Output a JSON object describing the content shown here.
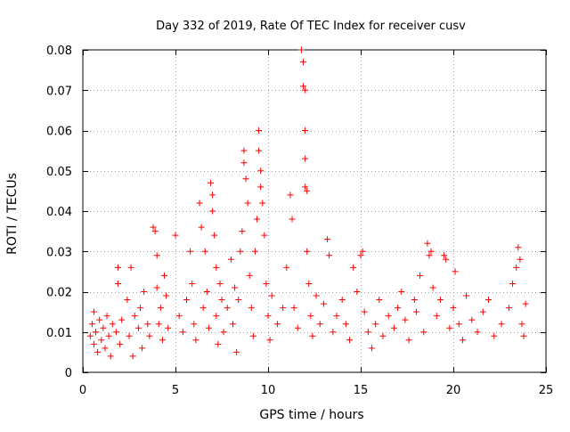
{
  "chart_data": {
    "type": "scatter",
    "title": "Day 332 of 2019, Rate Of TEC Index for receiver cusv",
    "xlabel": "GPS time / hours",
    "ylabel": "ROTI / TECUs",
    "xlim": [
      0,
      25
    ],
    "ylim": [
      0,
      0.08
    ],
    "xticks": [
      0,
      5,
      10,
      15,
      20,
      25
    ],
    "yticks": [
      0,
      0.01,
      0.02,
      0.03,
      0.04,
      0.05,
      0.06,
      0.07,
      0.08
    ],
    "xtick_labels": [
      "0",
      "5",
      "10",
      "15",
      "20",
      "25"
    ],
    "ytick_labels": [
      "0",
      "0.01",
      "0.02",
      "0.03",
      "0.04",
      "0.05",
      "0.06",
      "0.07",
      "0.08"
    ],
    "grid": true,
    "marker": "+",
    "marker_color": "#ff0000",
    "series": [
      {
        "name": "ROTI",
        "points": [
          [
            0.4,
            0.009
          ],
          [
            0.5,
            0.012
          ],
          [
            0.6,
            0.007
          ],
          [
            0.6,
            0.015
          ],
          [
            0.7,
            0.01
          ],
          [
            0.8,
            0.005
          ],
          [
            0.9,
            0.013
          ],
          [
            1.0,
            0.008
          ],
          [
            1.1,
            0.011
          ],
          [
            1.2,
            0.006
          ],
          [
            1.3,
            0.014
          ],
          [
            1.4,
            0.009
          ],
          [
            1.5,
            0.004
          ],
          [
            1.6,
            0.012
          ],
          [
            1.8,
            0.01
          ],
          [
            1.9,
            0.026
          ],
          [
            1.9,
            0.022
          ],
          [
            2.0,
            0.007
          ],
          [
            2.1,
            0.013
          ],
          [
            2.4,
            0.018
          ],
          [
            2.5,
            0.009
          ],
          [
            2.6,
            0.026
          ],
          [
            2.7,
            0.004
          ],
          [
            2.8,
            0.014
          ],
          [
            3.0,
            0.011
          ],
          [
            3.1,
            0.016
          ],
          [
            3.2,
            0.006
          ],
          [
            3.3,
            0.02
          ],
          [
            3.5,
            0.012
          ],
          [
            3.6,
            0.009
          ],
          [
            3.8,
            0.036
          ],
          [
            3.9,
            0.035
          ],
          [
            4.0,
            0.029
          ],
          [
            4.0,
            0.021
          ],
          [
            4.1,
            0.012
          ],
          [
            4.2,
            0.016
          ],
          [
            4.3,
            0.008
          ],
          [
            4.4,
            0.024
          ],
          [
            4.5,
            0.019
          ],
          [
            4.6,
            0.011
          ],
          [
            5.0,
            0.034
          ],
          [
            5.2,
            0.014
          ],
          [
            5.4,
            0.01
          ],
          [
            5.6,
            0.018
          ],
          [
            5.8,
            0.03
          ],
          [
            5.9,
            0.022
          ],
          [
            6.0,
            0.012
          ],
          [
            6.1,
            0.008
          ],
          [
            6.3,
            0.042
          ],
          [
            6.4,
            0.036
          ],
          [
            6.5,
            0.016
          ],
          [
            6.6,
            0.03
          ],
          [
            6.7,
            0.02
          ],
          [
            6.8,
            0.011
          ],
          [
            6.9,
            0.047
          ],
          [
            7.0,
            0.044
          ],
          [
            7.0,
            0.04
          ],
          [
            7.1,
            0.034
          ],
          [
            7.2,
            0.026
          ],
          [
            7.2,
            0.014
          ],
          [
            7.3,
            0.007
          ],
          [
            7.4,
            0.022
          ],
          [
            7.5,
            0.018
          ],
          [
            7.6,
            0.01
          ],
          [
            7.8,
            0.016
          ],
          [
            8.0,
            0.028
          ],
          [
            8.1,
            0.012
          ],
          [
            8.2,
            0.021
          ],
          [
            8.3,
            0.005
          ],
          [
            8.4,
            0.018
          ],
          [
            8.5,
            0.03
          ],
          [
            8.6,
            0.035
          ],
          [
            8.7,
            0.055
          ],
          [
            8.7,
            0.052
          ],
          [
            8.8,
            0.048
          ],
          [
            8.9,
            0.042
          ],
          [
            9.0,
            0.024
          ],
          [
            9.1,
            0.016
          ],
          [
            9.2,
            0.009
          ],
          [
            9.3,
            0.03
          ],
          [
            9.4,
            0.038
          ],
          [
            9.5,
            0.06
          ],
          [
            9.5,
            0.055
          ],
          [
            9.6,
            0.05
          ],
          [
            9.6,
            0.046
          ],
          [
            9.7,
            0.042
          ],
          [
            9.8,
            0.034
          ],
          [
            9.9,
            0.022
          ],
          [
            10.0,
            0.014
          ],
          [
            10.1,
            0.008
          ],
          [
            10.2,
            0.019
          ],
          [
            10.5,
            0.012
          ],
          [
            10.8,
            0.016
          ],
          [
            11.0,
            0.026
          ],
          [
            11.2,
            0.044
          ],
          [
            11.3,
            0.038
          ],
          [
            11.4,
            0.016
          ],
          [
            11.6,
            0.011
          ],
          [
            11.8,
            0.08
          ],
          [
            11.9,
            0.077
          ],
          [
            11.9,
            0.071
          ],
          [
            12.0,
            0.07
          ],
          [
            12.0,
            0.06
          ],
          [
            12.0,
            0.053
          ],
          [
            12.0,
            0.046
          ],
          [
            12.1,
            0.045
          ],
          [
            12.1,
            0.03
          ],
          [
            12.2,
            0.022
          ],
          [
            12.3,
            0.014
          ],
          [
            12.4,
            0.009
          ],
          [
            12.6,
            0.019
          ],
          [
            12.8,
            0.012
          ],
          [
            13.0,
            0.017
          ],
          [
            13.2,
            0.033
          ],
          [
            13.3,
            0.029
          ],
          [
            13.5,
            0.01
          ],
          [
            13.7,
            0.014
          ],
          [
            14.0,
            0.018
          ],
          [
            14.2,
            0.012
          ],
          [
            14.4,
            0.008
          ],
          [
            14.6,
            0.026
          ],
          [
            14.8,
            0.02
          ],
          [
            15.0,
            0.029
          ],
          [
            15.1,
            0.03
          ],
          [
            15.2,
            0.015
          ],
          [
            15.4,
            0.01
          ],
          [
            15.6,
            0.006
          ],
          [
            15.8,
            0.012
          ],
          [
            16.0,
            0.018
          ],
          [
            16.2,
            0.009
          ],
          [
            16.5,
            0.014
          ],
          [
            16.8,
            0.011
          ],
          [
            17.0,
            0.016
          ],
          [
            17.2,
            0.02
          ],
          [
            17.4,
            0.013
          ],
          [
            17.6,
            0.008
          ],
          [
            17.9,
            0.018
          ],
          [
            18.0,
            0.015
          ],
          [
            18.2,
            0.024
          ],
          [
            18.4,
            0.01
          ],
          [
            18.6,
            0.032
          ],
          [
            18.7,
            0.029
          ],
          [
            18.8,
            0.03
          ],
          [
            18.9,
            0.021
          ],
          [
            19.1,
            0.014
          ],
          [
            19.3,
            0.018
          ],
          [
            19.5,
            0.029
          ],
          [
            19.6,
            0.028
          ],
          [
            19.8,
            0.011
          ],
          [
            20.0,
            0.016
          ],
          [
            20.1,
            0.025
          ],
          [
            20.3,
            0.012
          ],
          [
            20.5,
            0.008
          ],
          [
            20.7,
            0.019
          ],
          [
            21.0,
            0.013
          ],
          [
            21.3,
            0.01
          ],
          [
            21.6,
            0.015
          ],
          [
            21.9,
            0.018
          ],
          [
            22.2,
            0.009
          ],
          [
            22.6,
            0.012
          ],
          [
            23.0,
            0.016
          ],
          [
            23.2,
            0.022
          ],
          [
            23.4,
            0.026
          ],
          [
            23.5,
            0.031
          ],
          [
            23.6,
            0.028
          ],
          [
            23.7,
            0.012
          ],
          [
            23.8,
            0.009
          ],
          [
            23.9,
            0.017
          ]
        ]
      }
    ]
  }
}
